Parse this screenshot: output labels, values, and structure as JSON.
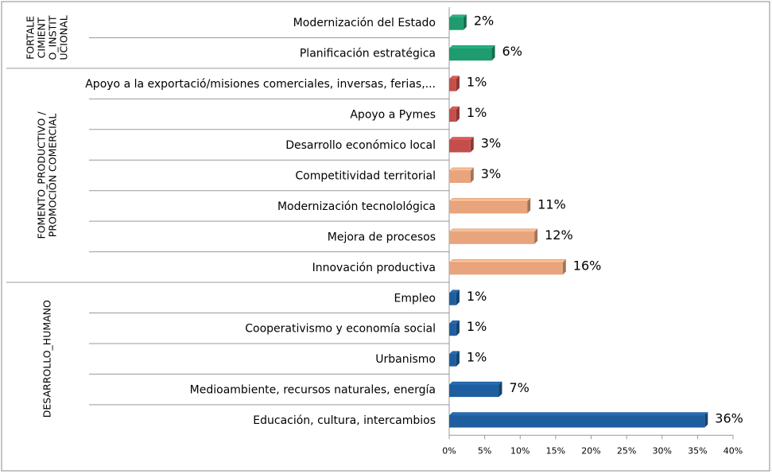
{
  "chart_data": {
    "type": "bar",
    "groups": [
      {
        "label_lines": [
          "FORTALE",
          "CIMIENT",
          "O_INSTIT",
          "UCIONAL"
        ],
        "categories": [
          "Modernización del Estado",
          "Planificación estratégica"
        ],
        "values": [
          2,
          6
        ],
        "value_labels": [
          "2%",
          "6%"
        ],
        "colors": [
          "#1e9b6f",
          "#1e9b6f"
        ]
      },
      {
        "label_lines": [
          "FOMENTO_PRODUCTIVO /",
          "PROMOCIÓN COMERCIAL"
        ],
        "categories": [
          "Apoyo a la exportació/misiones comerciales, inversas, ferias,...",
          "Apoyo a Pymes",
          "Desarrollo económico local",
          "Competitividad territorial",
          "Modernización tecnolológica",
          "Mejora de procesos",
          "Innovación productiva"
        ],
        "values": [
          1,
          1,
          3,
          3,
          11,
          12,
          16
        ],
        "value_labels": [
          "1%",
          "1%",
          "3%",
          "3%",
          "11%",
          "12%",
          "16%"
        ],
        "colors": [
          "#c44e4b",
          "#c44e4b",
          "#c44e4b",
          "#e8a47c",
          "#e8a47c",
          "#e8a47c",
          "#e8a47c"
        ]
      },
      {
        "label_lines": [
          "DESARROLLO_HUMANO"
        ],
        "categories": [
          "Empleo",
          "Cooperativismo y economía social",
          "Urbanismo",
          "Medioambiente, recursos naturales, energía",
          "Educación, cultura, intercambios"
        ],
        "values": [
          1,
          1,
          1,
          7,
          36
        ],
        "value_labels": [
          "1%",
          "1%",
          "1%",
          "7%",
          "36%"
        ],
        "colors": [
          "#1f5e9e",
          "#1f5e9e",
          "#1f5e9e",
          "#1f5e9e",
          "#1f5e9e"
        ]
      }
    ],
    "xlim": [
      0,
      40
    ],
    "xticks": [
      {
        "value": 0,
        "label": "0%"
      },
      {
        "value": 5,
        "label": "5%"
      },
      {
        "value": 10,
        "label": "10%"
      },
      {
        "value": 15,
        "label": "15%"
      },
      {
        "value": 20,
        "label": "20%"
      },
      {
        "value": 25,
        "label": "25%"
      },
      {
        "value": 30,
        "label": "30%"
      },
      {
        "value": 35,
        "label": "35%"
      },
      {
        "value": 40,
        "label": "40%"
      }
    ]
  }
}
